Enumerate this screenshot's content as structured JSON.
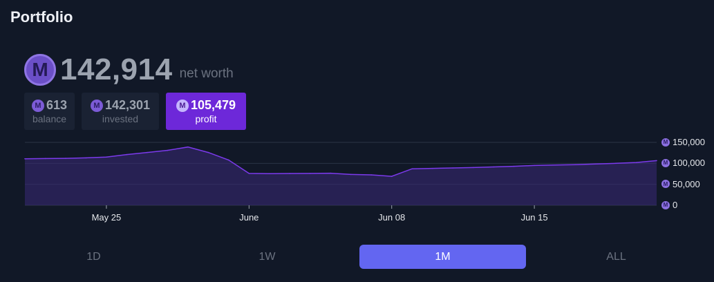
{
  "page": {
    "title": "Portfolio"
  },
  "net_worth": {
    "value": "142,914",
    "label": "net worth",
    "currency_icon": "mana-coin-icon"
  },
  "cards": [
    {
      "value": "613",
      "label": "balance",
      "active": false
    },
    {
      "value": "142,301",
      "label": "invested",
      "active": false
    },
    {
      "value": "105,479",
      "label": "profit",
      "active": true
    }
  ],
  "currency_symbol": "M",
  "colors": {
    "accent": "#6366f1",
    "profit": "#6d28d9",
    "line": "#7c3aed",
    "background": "#111827"
  },
  "chart_data": {
    "type": "area",
    "title": "",
    "xlabel": "",
    "ylabel": "",
    "x_tick_labels": [
      "May 25",
      "June",
      "Jun 08",
      "Jun 15"
    ],
    "y_tick_labels": [
      "150,000",
      "100,000",
      "50,000",
      "0"
    ],
    "y_tick_values": [
      150000,
      100000,
      50000,
      0
    ],
    "ylim": [
      0,
      150000
    ],
    "xlim": [
      "May 21",
      "Jun 21"
    ],
    "grid": true,
    "series": [
      {
        "x": [
          "May 21",
          "May 22",
          "May 23",
          "May 24",
          "May 25",
          "May 26",
          "May 27",
          "May 28",
          "May 29",
          "May 30",
          "May 31",
          "Jun 01",
          "Jun 02",
          "Jun 03",
          "Jun 04",
          "Jun 05",
          "Jun 06",
          "Jun 07",
          "Jun 08",
          "Jun 09",
          "Jun 10",
          "Jun 11",
          "Jun 12",
          "Jun 13",
          "Jun 14",
          "Jun 15",
          "Jun 16",
          "Jun 17",
          "Jun 18",
          "Jun 19",
          "Jun 20",
          "Jun 21"
        ],
        "values": [
          111000,
          111500,
          112000,
          113000,
          115000,
          121000,
          126000,
          131000,
          139000,
          126000,
          108000,
          76000,
          75500,
          75800,
          76000,
          76500,
          73500,
          72500,
          69000,
          87000,
          88000,
          89000,
          90000,
          91500,
          93000,
          95000,
          96000,
          97000,
          98500,
          100000,
          102000,
          106500
        ]
      }
    ]
  },
  "ranges": [
    {
      "label": "1D",
      "active": false
    },
    {
      "label": "1W",
      "active": false
    },
    {
      "label": "1M",
      "active": true
    },
    {
      "label": "ALL",
      "active": false
    }
  ]
}
